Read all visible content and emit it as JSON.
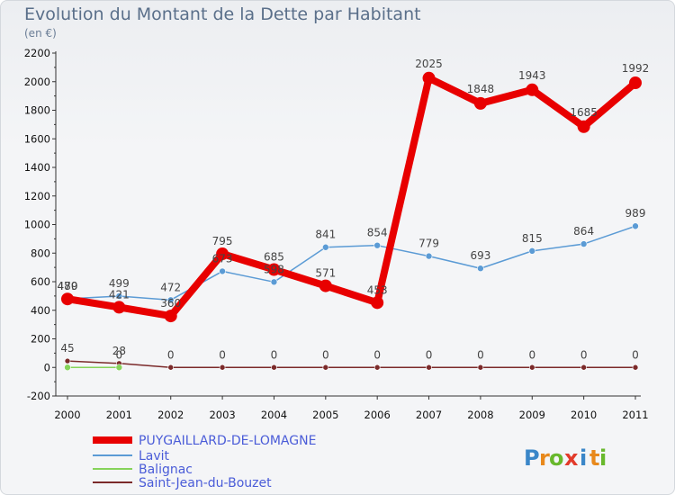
{
  "header": {
    "title": "Evolution du Montant de la Dette par Habitant",
    "unit": "(en €)"
  },
  "brand": {
    "letters": [
      {
        "ch": "P",
        "color": "#3a86c8"
      },
      {
        "ch": "r",
        "color": "#e8891c"
      },
      {
        "ch": "o",
        "color": "#68b82c"
      },
      {
        "ch": "x",
        "color": "#e23a2a"
      },
      {
        "ch": "i",
        "color": "#3a86c8"
      },
      {
        "ch": "t",
        "color": "#e8891c"
      },
      {
        "ch": "i",
        "color": "#68b82c"
      }
    ]
  },
  "chart_data": {
    "type": "line",
    "title": "Evolution du Montant de la Dette par Habitant",
    "ylabel": "(en €)",
    "xlabel": "",
    "x": [
      "2000",
      "2001",
      "2002",
      "2003",
      "2004",
      "2005",
      "2006",
      "2007",
      "2008",
      "2009",
      "2010",
      "2011"
    ],
    "ylim": [
      -200,
      2200
    ],
    "yticks": [
      -200,
      0,
      200,
      400,
      600,
      800,
      1000,
      1200,
      1400,
      1600,
      1800,
      2000,
      2200
    ],
    "grid": false,
    "legend": "bottom-left",
    "series": [
      {
        "name": "PUYGAILLARD-DE-LOMAGNE",
        "color": "#e80000",
        "values": [
          479,
          421,
          360,
          795,
          685,
          571,
          453,
          2025,
          1848,
          1943,
          1685,
          1992
        ]
      },
      {
        "name": "Lavit",
        "color": "#5b9bd5",
        "values": [
          480,
          499,
          472,
          673,
          598,
          841,
          854,
          779,
          693,
          815,
          864,
          989
        ]
      },
      {
        "name": "Balignac",
        "color": "#86d35a",
        "values": [
          0,
          0,
          null,
          null,
          null,
          null,
          null,
          null,
          null,
          null,
          null,
          null
        ]
      },
      {
        "name": "Saint-Jean-du-Bouzet",
        "color": "#7b2a2a",
        "values": [
          45,
          28,
          0,
          0,
          0,
          0,
          0,
          0,
          0,
          0,
          0,
          0
        ]
      }
    ],
    "data_labels": [
      {
        "x": "2000",
        "text": "480"
      },
      {
        "x": "2000",
        "text": "479"
      },
      {
        "x": "2001",
        "text": "499"
      },
      {
        "x": "2001",
        "text": "421"
      },
      {
        "x": "2002",
        "text": "472"
      },
      {
        "x": "2002",
        "text": "360"
      },
      {
        "x": "2003",
        "text": "795"
      },
      {
        "x": "2003",
        "text": "673"
      },
      {
        "x": "2004",
        "text": "685"
      },
      {
        "x": "2004",
        "text": "598"
      },
      {
        "x": "2005",
        "text": "841"
      },
      {
        "x": "2005",
        "text": "571"
      },
      {
        "x": "2006",
        "text": "854"
      },
      {
        "x": "2006",
        "text": "453"
      },
      {
        "x": "2007",
        "text": "2025"
      },
      {
        "x": "2007",
        "text": "779"
      },
      {
        "x": "2008",
        "text": "1848"
      },
      {
        "x": "2008",
        "text": "693"
      },
      {
        "x": "2009",
        "text": "1943"
      },
      {
        "x": "2009",
        "text": "815"
      },
      {
        "x": "2010",
        "text": "1685"
      },
      {
        "x": "2010",
        "text": "864"
      },
      {
        "x": "2011",
        "text": "1992"
      },
      {
        "x": "2011",
        "text": "989"
      },
      {
        "x": "2000",
        "text": "45"
      },
      {
        "x": "2001",
        "text": "28"
      },
      {
        "x": "2001",
        "text": "0"
      },
      {
        "x": "2002",
        "text": "0"
      },
      {
        "x": "2003",
        "text": "0"
      },
      {
        "x": "2004",
        "text": "0"
      },
      {
        "x": "2005",
        "text": "0"
      },
      {
        "x": "2006",
        "text": "0"
      },
      {
        "x": "2007",
        "text": "0"
      },
      {
        "x": "2008",
        "text": "0"
      },
      {
        "x": "2009",
        "text": "0"
      },
      {
        "x": "2010",
        "text": "0"
      },
      {
        "x": "2011",
        "text": "0"
      }
    ]
  }
}
